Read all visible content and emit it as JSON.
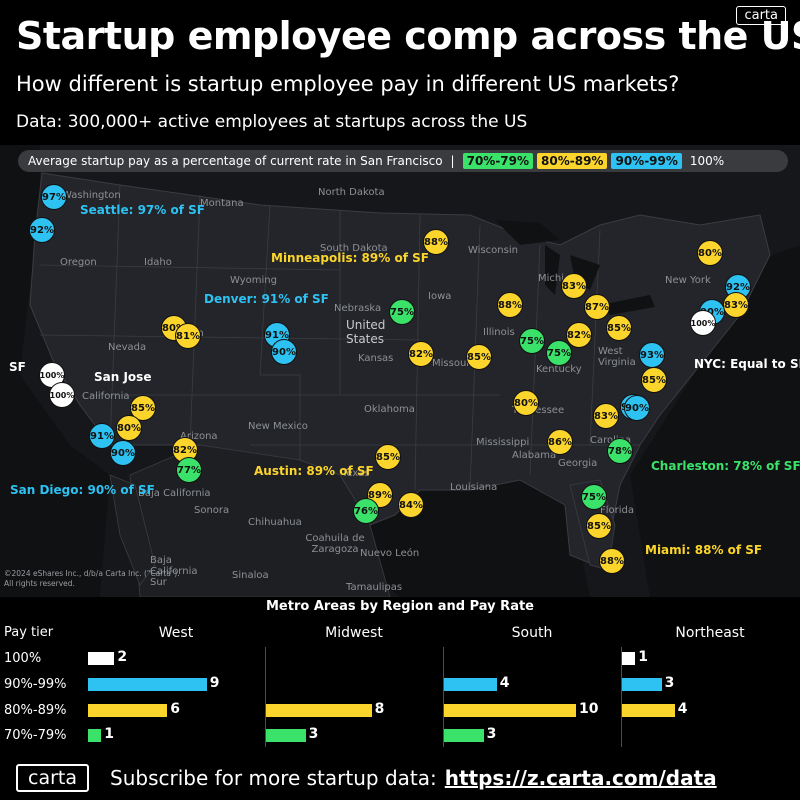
{
  "brand": "carta",
  "title": "Startup employee comp across the US",
  "subtitle": "How different is startup employee pay in different US markets?",
  "data_note": "Data: 300,000+ active employees at startups across the US",
  "legend": {
    "title": "Average startup pay as a percentage of current rate in San Francisco",
    "separator": "|",
    "tiers": [
      {
        "label": "70%-79%",
        "color": "#3be26a"
      },
      {
        "label": "80%-89%",
        "color": "#fcd52c"
      },
      {
        "label": "90%-99%",
        "color": "#2ec2f2"
      },
      {
        "label": "100%",
        "color": "#ffffff"
      }
    ]
  },
  "colors": {
    "green": "#3be26a",
    "yellow": "#fcd52c",
    "blue": "#2ec2f2",
    "white": "#ffffff"
  },
  "places": [
    {
      "name": "Washington",
      "big": false
    },
    {
      "name": "Montana",
      "big": false
    },
    {
      "name": "North Dakota",
      "big": false
    },
    {
      "name": "South Dakota",
      "big": false
    },
    {
      "name": "Oregon",
      "big": false
    },
    {
      "name": "Idaho",
      "big": false
    },
    {
      "name": "Wyoming",
      "big": false
    },
    {
      "name": "Wisconsin",
      "big": false
    },
    {
      "name": "Michigan",
      "big": false
    },
    {
      "name": "New York",
      "big": false
    },
    {
      "name": "Nebraska",
      "big": false
    },
    {
      "name": "Iowa",
      "big": false
    },
    {
      "name": "United States",
      "big": true
    },
    {
      "name": "Illinois",
      "big": false
    },
    {
      "name": "Nevada",
      "big": false
    },
    {
      "name": "Utah",
      "big": false
    },
    {
      "name": "Kansas",
      "big": false
    },
    {
      "name": "Missouri",
      "big": false
    },
    {
      "name": "Kentucky",
      "big": false
    },
    {
      "name": "West Virginia",
      "big": false
    },
    {
      "name": "California",
      "big": false
    },
    {
      "name": "Oklahoma",
      "big": false
    },
    {
      "name": "Arizona",
      "big": false
    },
    {
      "name": "New Mexico",
      "big": false
    },
    {
      "name": "Tennessee",
      "big": false
    },
    {
      "name": "Mississippi",
      "big": false
    },
    {
      "name": "Alabama",
      "big": false
    },
    {
      "name": "Georgia",
      "big": false
    },
    {
      "name": "Carolina",
      "big": false
    },
    {
      "name": "Texas",
      "big": false
    },
    {
      "name": "Louisiana",
      "big": false
    },
    {
      "name": "Baja California",
      "big": false
    },
    {
      "name": "Sonora",
      "big": false
    },
    {
      "name": "Chihuahua",
      "big": false
    },
    {
      "name": "Coahuila de Zaragoza",
      "big": false
    },
    {
      "name": "Nuevo León",
      "big": false
    },
    {
      "name": "Tamaulipas",
      "big": false
    },
    {
      "name": "Baja California Sur",
      "big": false
    },
    {
      "name": "Sinaloa",
      "big": false
    },
    {
      "name": "Florida",
      "big": false
    }
  ],
  "markers": [
    {
      "label": "97%",
      "tier": "blue"
    },
    {
      "label": "92%",
      "tier": "blue"
    },
    {
      "label": "88%",
      "tier": "yellow"
    },
    {
      "label": "80%",
      "tier": "yellow"
    },
    {
      "label": "92%",
      "tier": "blue"
    },
    {
      "label": "83%",
      "tier": "yellow"
    },
    {
      "label": "83%",
      "tier": "yellow"
    },
    {
      "label": "87%",
      "tier": "yellow"
    },
    {
      "label": "88%",
      "tier": "yellow"
    },
    {
      "label": "90%",
      "tier": "blue"
    },
    {
      "label": "100%",
      "tier": "white"
    },
    {
      "label": "75%",
      "tier": "green"
    },
    {
      "label": "80%",
      "tier": "yellow"
    },
    {
      "label": "81%",
      "tier": "yellow"
    },
    {
      "label": "91%",
      "tier": "blue"
    },
    {
      "label": "90%",
      "tier": "blue"
    },
    {
      "label": "82%",
      "tier": "yellow"
    },
    {
      "label": "85%",
      "tier": "yellow"
    },
    {
      "label": "75%",
      "tier": "green"
    },
    {
      "label": "75%",
      "tier": "green"
    },
    {
      "label": "82%",
      "tier": "yellow"
    },
    {
      "label": "85%",
      "tier": "yellow"
    },
    {
      "label": "93%",
      "tier": "blue"
    },
    {
      "label": "85%",
      "tier": "yellow"
    },
    {
      "label": "90%",
      "tier": "blue"
    },
    {
      "label": "100%",
      "tier": "white"
    },
    {
      "label": "100%",
      "tier": "white"
    },
    {
      "label": "85%",
      "tier": "yellow"
    },
    {
      "label": "80%",
      "tier": "yellow"
    },
    {
      "label": "91%",
      "tier": "blue"
    },
    {
      "label": "90%",
      "tier": "blue"
    },
    {
      "label": "82%",
      "tier": "yellow"
    },
    {
      "label": "77%",
      "tier": "green"
    },
    {
      "label": "80%",
      "tier": "yellow"
    },
    {
      "label": "83%",
      "tier": "yellow"
    },
    {
      "label": "90%",
      "tier": "blue"
    },
    {
      "label": "86%",
      "tier": "yellow"
    },
    {
      "label": "78%",
      "tier": "green"
    },
    {
      "label": "85%",
      "tier": "yellow"
    },
    {
      "label": "89%",
      "tier": "yellow"
    },
    {
      "label": "76%",
      "tier": "green"
    },
    {
      "label": "84%",
      "tier": "yellow"
    },
    {
      "label": "75%",
      "tier": "green"
    },
    {
      "label": "85%",
      "tier": "yellow"
    },
    {
      "label": "88%",
      "tier": "yellow"
    }
  ],
  "callouts": [
    {
      "text": "Seattle: 97% of SF",
      "tier": "blue"
    },
    {
      "text": "Minneapolis: 89% of SF",
      "tier": "yellow"
    },
    {
      "text": "Denver: 91% of SF",
      "tier": "blue"
    },
    {
      "text": "NYC: Equal to SF",
      "tier": "white"
    },
    {
      "text": "SF",
      "tier": "white"
    },
    {
      "text": "San Jose",
      "tier": "white"
    },
    {
      "text": "San Diego: 90% of SF",
      "tier": "blue"
    },
    {
      "text": "Austin: 89% of SF",
      "tier": "yellow"
    },
    {
      "text": "Charleston: 78% of SF",
      "tier": "green"
    },
    {
      "text": "Miami: 88% of SF",
      "tier": "yellow"
    }
  ],
  "copyright": [
    "©2024 eShares Inc., d/b/a Carta Inc. (\"Carta\").",
    "All rights reserved."
  ],
  "chart_data": {
    "type": "bar",
    "title": "Metro Areas by Region and Pay Rate",
    "row_header": "Pay tier",
    "categories": [
      "100%",
      "90%-99%",
      "80%-89%",
      "70%-79%"
    ],
    "regions": [
      {
        "name": "West",
        "values": [
          2,
          9,
          6,
          1
        ]
      },
      {
        "name": "Midwest",
        "values": [
          0,
          0,
          8,
          3
        ]
      },
      {
        "name": "South",
        "values": [
          0,
          4,
          10,
          3
        ]
      },
      {
        "name": "Northeast",
        "values": [
          1,
          3,
          4,
          0
        ]
      }
    ],
    "tier_colors": [
      "#ffffff",
      "#2ec2f2",
      "#fcd52c",
      "#3be26a"
    ]
  },
  "footer": {
    "logo": "carta",
    "text": "Subscribe for more startup data:",
    "link": "https://z.carta.com/data"
  }
}
